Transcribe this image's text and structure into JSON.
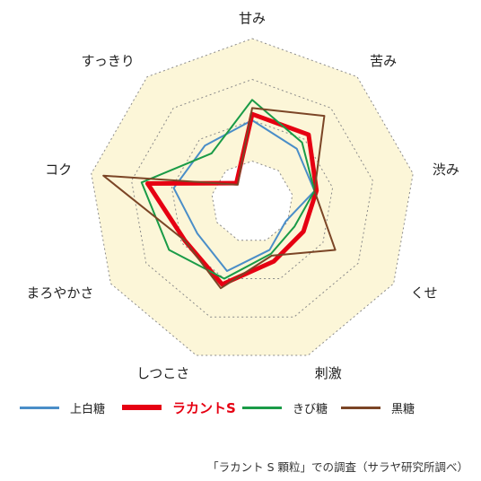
{
  "chart_data": {
    "type": "radar",
    "axes": [
      "甘み",
      "苦み",
      "渋み",
      "くせ",
      "刺激",
      "しつこさ",
      "まろやかさ",
      "コク",
      "すっきり"
    ],
    "rings": [
      1,
      2,
      3,
      4
    ],
    "max": 4,
    "grid": true,
    "legend_position": "bottom",
    "series": [
      {
        "name": "上白糖",
        "color": "#4a8ec8",
        "width": 2,
        "values": [
          2.0,
          1.7,
          1.55,
          0.95,
          1.25,
          1.8,
          1.55,
          1.95,
          1.8
        ]
      },
      {
        "name": "ラカントS",
        "color": "#e60012",
        "width": 5,
        "values": [
          2.15,
          2.15,
          1.6,
          1.45,
          1.55,
          2.15,
          1.9,
          2.6,
          0.6
        ]
      },
      {
        "name": "きび糖",
        "color": "#1a9b47",
        "width": 2,
        "values": [
          2.5,
          1.9,
          1.55,
          1.2,
          1.35,
          2.0,
          2.35,
          2.75,
          1.55
        ]
      },
      {
        "name": "黒糖",
        "color": "#7b4526",
        "width": 2,
        "values": [
          2.3,
          2.75,
          1.55,
          2.35,
          1.4,
          2.25,
          1.9,
          3.7,
          0.55
        ]
      }
    ]
  },
  "source_note": "「ラカント S 顆粒」での調査（サラヤ研究所調べ）"
}
